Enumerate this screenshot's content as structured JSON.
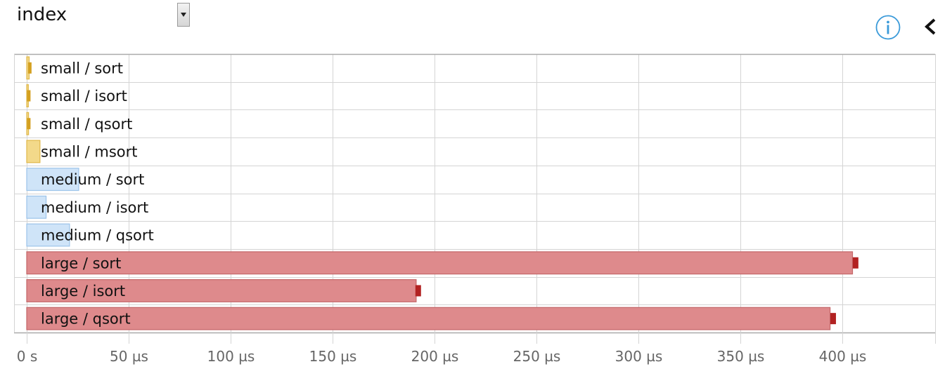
{
  "header": {
    "select_value": "index",
    "info_icon": "info-circle-icon",
    "back_icon": "chevron-left-icon"
  },
  "colors": {
    "small_fill": "#f3d98a",
    "small_stroke": "#e0b84a",
    "small_error": "#d4a020",
    "medium_fill": "#cfe4f8",
    "medium_stroke": "#9cc4ea",
    "large_fill": "#de8a8c",
    "large_stroke": "#c46769",
    "large_error": "#b22222",
    "grid": "#d4d4d4",
    "axis": "#aaaaaa",
    "tick_text": "#666666"
  },
  "chart_data": {
    "type": "bar",
    "orientation": "horizontal",
    "title": "",
    "xlabel": "",
    "ylabel": "",
    "unit": "µs",
    "xlim": [
      0,
      445
    ],
    "grid": true,
    "categories": [
      "small / sort",
      "small / isort",
      "small / qsort",
      "small / msort",
      "medium / sort",
      "medium / isort",
      "medium / qsort",
      "large / sort",
      "large / isort",
      "large / qsort"
    ],
    "groups": [
      "small",
      "small",
      "small",
      "small",
      "medium",
      "medium",
      "medium",
      "large",
      "large",
      "large"
    ],
    "values": [
      1.2,
      0.8,
      0.9,
      6.5,
      25.5,
      9.5,
      21,
      405,
      191,
      394
    ],
    "error_values": [
      1.5,
      1.0,
      1.0,
      null,
      null,
      null,
      null,
      406.5,
      192,
      395.5
    ],
    "ticks": [
      {
        "value": 0,
        "label": "0 s"
      },
      {
        "value": 50,
        "label": "50 µs"
      },
      {
        "value": 100,
        "label": "100 µs"
      },
      {
        "value": 150,
        "label": "150 µs"
      },
      {
        "value": 200,
        "label": "200 µs"
      },
      {
        "value": 250,
        "label": "250 µs"
      },
      {
        "value": 300,
        "label": "300 µs"
      },
      {
        "value": 350,
        "label": "350 µs"
      },
      {
        "value": 400,
        "label": "400 µs"
      }
    ]
  }
}
